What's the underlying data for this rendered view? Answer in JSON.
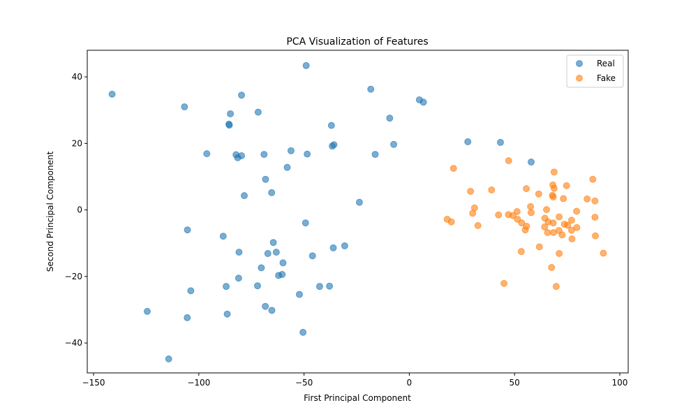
{
  "chart_data": {
    "type": "scatter",
    "title": "PCA Visualization of Features",
    "xlabel": "First Principal Component",
    "ylabel": "Second Principal Component",
    "xlim": [
      -153,
      104
    ],
    "ylim": [
      -49,
      48
    ],
    "xticks": [
      -150,
      -100,
      -50,
      0,
      50,
      100
    ],
    "yticks": [
      -40,
      -20,
      0,
      20,
      40
    ],
    "grid": false,
    "legend_position": "top-right",
    "marker_alpha": 0.6,
    "series": [
      {
        "name": "Real",
        "color": "#1f77b4",
        "points": [
          [
            -141.2,
            34.8
          ],
          [
            -106.8,
            31.0
          ],
          [
            -85.7,
            25.8
          ],
          [
            -85.5,
            25.5
          ],
          [
            -85.0,
            28.9
          ],
          [
            -79.7,
            34.5
          ],
          [
            -71.8,
            29.4
          ],
          [
            -49.0,
            43.4
          ],
          [
            -96.2,
            16.9
          ],
          [
            -82.3,
            16.6
          ],
          [
            -81.5,
            15.7
          ],
          [
            -79.7,
            16.3
          ],
          [
            -69.0,
            16.7
          ],
          [
            -68.3,
            9.2
          ],
          [
            -65.4,
            5.2
          ],
          [
            -78.4,
            4.3
          ],
          [
            -56.2,
            17.8
          ],
          [
            -48.5,
            16.8
          ],
          [
            -58.0,
            12.8
          ],
          [
            -37.0,
            25.4
          ],
          [
            -36.6,
            19.2
          ],
          [
            -35.8,
            19.6
          ],
          [
            -18.3,
            36.3
          ],
          [
            -16.2,
            16.7
          ],
          [
            -9.3,
            27.6
          ],
          [
            -7.4,
            19.7
          ],
          [
            4.8,
            33.1
          ],
          [
            6.7,
            32.4
          ],
          [
            -23.7,
            2.3
          ],
          [
            27.8,
            20.5
          ],
          [
            43.3,
            20.3
          ],
          [
            57.9,
            14.4
          ],
          [
            -105.4,
            -6.0
          ],
          [
            -88.4,
            -7.9
          ],
          [
            -80.9,
            -12.7
          ],
          [
            -67.2,
            -13.1
          ],
          [
            -64.6,
            -9.8
          ],
          [
            -63.2,
            -12.7
          ],
          [
            -60.0,
            -15.9
          ],
          [
            -49.3,
            -3.9
          ],
          [
            -46.0,
            -13.8
          ],
          [
            -36.1,
            -11.4
          ],
          [
            -30.7,
            -10.8
          ],
          [
            -70.3,
            -17.4
          ],
          [
            -81.1,
            -20.5
          ],
          [
            -62.1,
            -19.7
          ],
          [
            -60.4,
            -19.4
          ],
          [
            -87.0,
            -23.0
          ],
          [
            -72.1,
            -22.8
          ],
          [
            -103.8,
            -24.3
          ],
          [
            -124.5,
            -30.5
          ],
          [
            -105.5,
            -32.4
          ],
          [
            -86.5,
            -31.3
          ],
          [
            -68.4,
            -29.0
          ],
          [
            -65.3,
            -30.2
          ],
          [
            -52.2,
            -25.4
          ],
          [
            -42.6,
            -23.0
          ],
          [
            -37.9,
            -22.9
          ],
          [
            -50.5,
            -36.8
          ],
          [
            -114.3,
            -44.8
          ]
        ]
      },
      {
        "name": "Fake",
        "color": "#ff7f0e",
        "points": [
          [
            21.0,
            12.5
          ],
          [
            47.2,
            14.8
          ],
          [
            68.8,
            11.4
          ],
          [
            87.2,
            9.2
          ],
          [
            55.6,
            6.4
          ],
          [
            68.2,
            7.5
          ],
          [
            68.8,
            6.5
          ],
          [
            74.7,
            7.3
          ],
          [
            29.1,
            5.6
          ],
          [
            39.1,
            6.0
          ],
          [
            61.5,
            4.8
          ],
          [
            68.0,
            4.4
          ],
          [
            68.4,
            3.9
          ],
          [
            73.2,
            3.4
          ],
          [
            84.5,
            3.3
          ],
          [
            88.2,
            2.7
          ],
          [
            31.0,
            0.6
          ],
          [
            57.6,
            1.0
          ],
          [
            65.2,
            0.1
          ],
          [
            79.5,
            -0.4
          ],
          [
            30.1,
            -1.0
          ],
          [
            51.2,
            -0.5
          ],
          [
            57.9,
            -0.8
          ],
          [
            42.4,
            -1.5
          ],
          [
            47.1,
            -1.4
          ],
          [
            49.2,
            -1.7
          ],
          [
            18.0,
            -2.8
          ],
          [
            20.0,
            -3.6
          ],
          [
            32.6,
            -4.7
          ],
          [
            51.4,
            -2.8
          ],
          [
            53.4,
            -3.9
          ],
          [
            55.7,
            -4.9
          ],
          [
            64.4,
            -2.5
          ],
          [
            66.0,
            -3.6
          ],
          [
            68.4,
            -3.9
          ],
          [
            71.2,
            -2.1
          ],
          [
            73.7,
            -4.3
          ],
          [
            75.2,
            -4.6
          ],
          [
            77.1,
            -3.1
          ],
          [
            79.6,
            -5.3
          ],
          [
            88.2,
            -2.2
          ],
          [
            55.1,
            -6.0
          ],
          [
            64.3,
            -5.1
          ],
          [
            65.7,
            -6.8
          ],
          [
            68.5,
            -6.8
          ],
          [
            71.1,
            -6.2
          ],
          [
            72.6,
            -7.5
          ],
          [
            77.1,
            -6.1
          ],
          [
            77.3,
            -8.7
          ],
          [
            88.4,
            -7.8
          ],
          [
            53.2,
            -12.5
          ],
          [
            61.8,
            -11.1
          ],
          [
            71.2,
            -13.1
          ],
          [
            92.2,
            -13.0
          ],
          [
            67.6,
            -17.3
          ],
          [
            45.0,
            -22.1
          ],
          [
            69.8,
            -23.0
          ]
        ]
      }
    ]
  }
}
